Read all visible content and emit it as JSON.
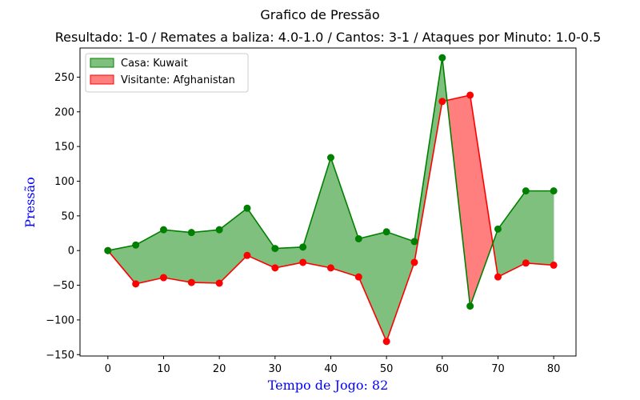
{
  "chart_data": {
    "type": "area",
    "title": "Grafico de Pressão",
    "subtitle": "Resultado: 1-0 / Remates a baliza: 4.0-1.0 / Cantos: 3-1 / Ataques por Minuto: 1.0-0.5",
    "xlabel": "Tempo de Jogo: 82",
    "ylabel": "Pressão",
    "xlim": [
      -5,
      84
    ],
    "ylim": [
      -152,
      292
    ],
    "x_ticks": [
      0,
      10,
      20,
      30,
      40,
      50,
      60,
      70,
      80
    ],
    "y_ticks": [
      -150,
      -100,
      -50,
      0,
      50,
      100,
      150,
      200,
      250
    ],
    "x": [
      0,
      5,
      10,
      15,
      20,
      25,
      30,
      35,
      40,
      45,
      50,
      55,
      60,
      65,
      70,
      75,
      80
    ],
    "series": [
      {
        "name": "Casa: Kuwait",
        "color": "#008000",
        "fill": "#7fc07f",
        "values": [
          0,
          8,
          30,
          26,
          30,
          61,
          3,
          5,
          134,
          17,
          27,
          13,
          278,
          -80,
          31,
          86,
          86
        ]
      },
      {
        "name": "Visitante: Afghanistan",
        "color": "#ff0000",
        "fill": "#ff7f7f",
        "values": [
          0,
          -48,
          -39,
          -46,
          -47,
          -7,
          -25,
          -17,
          -25,
          -38,
          -131,
          -17,
          215,
          224,
          -38,
          -18,
          -21
        ]
      }
    ],
    "legend": "top-left",
    "grid": false,
    "label_color": "#0000ff"
  }
}
